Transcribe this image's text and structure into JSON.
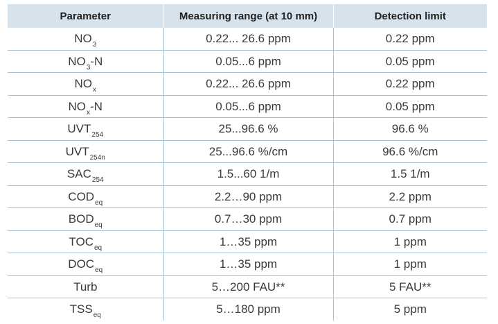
{
  "table": {
    "headers": [
      "Parameter",
      "Measuring range (at 10 mm)",
      "Detection limit"
    ],
    "rows": [
      {
        "param": {
          "base": "NO",
          "sub": "3",
          "suffix": ""
        },
        "range": "0.22... 26.6 ppm",
        "limit": "0.22 ppm"
      },
      {
        "param": {
          "base": "NO",
          "sub": "3",
          "suffix": "-N"
        },
        "range": "0.05...6 ppm",
        "limit": "0.05 ppm"
      },
      {
        "param": {
          "base": "NO",
          "sub": "x",
          "suffix": ""
        },
        "range": "0.22... 26.6 ppm",
        "limit": "0.22 ppm"
      },
      {
        "param": {
          "base": "NO",
          "sub": "x",
          "suffix": "-N"
        },
        "range": "0.05...6 ppm",
        "limit": "0.05 ppm"
      },
      {
        "param": {
          "base": "UVT",
          "sub": "254",
          "suffix": ""
        },
        "range": "25...96.6 %",
        "limit": "96.6 %"
      },
      {
        "param": {
          "base": "UVT",
          "sub": "254n",
          "suffix": ""
        },
        "range": "25...96.6 %/cm",
        "limit": "96.6 %/cm"
      },
      {
        "param": {
          "base": "SAC",
          "sub": "254",
          "suffix": ""
        },
        "range": "1.5...60 1/m",
        "limit": "1.5 1/m"
      },
      {
        "param": {
          "base": "COD",
          "sub": "eq",
          "suffix": ""
        },
        "range": "2.2…90 ppm",
        "limit": "2.2 ppm"
      },
      {
        "param": {
          "base": "BOD",
          "sub": "eq",
          "suffix": ""
        },
        "range": "0.7…30 ppm",
        "limit": "0.7 ppm"
      },
      {
        "param": {
          "base": "TOC",
          "sub": "eq",
          "suffix": ""
        },
        "range": "1…35 ppm",
        "limit": "1 ppm"
      },
      {
        "param": {
          "base": "DOC",
          "sub": "eq",
          "suffix": ""
        },
        "range": "1…35 ppm",
        "limit": "1 ppm"
      },
      {
        "param": {
          "base": "Turb",
          "sub": "",
          "suffix": ""
        },
        "range": "5…200 FAU**",
        "limit": "5 FAU**"
      },
      {
        "param": {
          "base": "TSS",
          "sub": "eq",
          "suffix": ""
        },
        "range": "5…180 ppm",
        "limit": "5 ppm"
      }
    ]
  },
  "colors": {
    "header_bg": "#d7e3ec",
    "grid_line": "#a8c2d4",
    "text": "#3a3a3a"
  }
}
